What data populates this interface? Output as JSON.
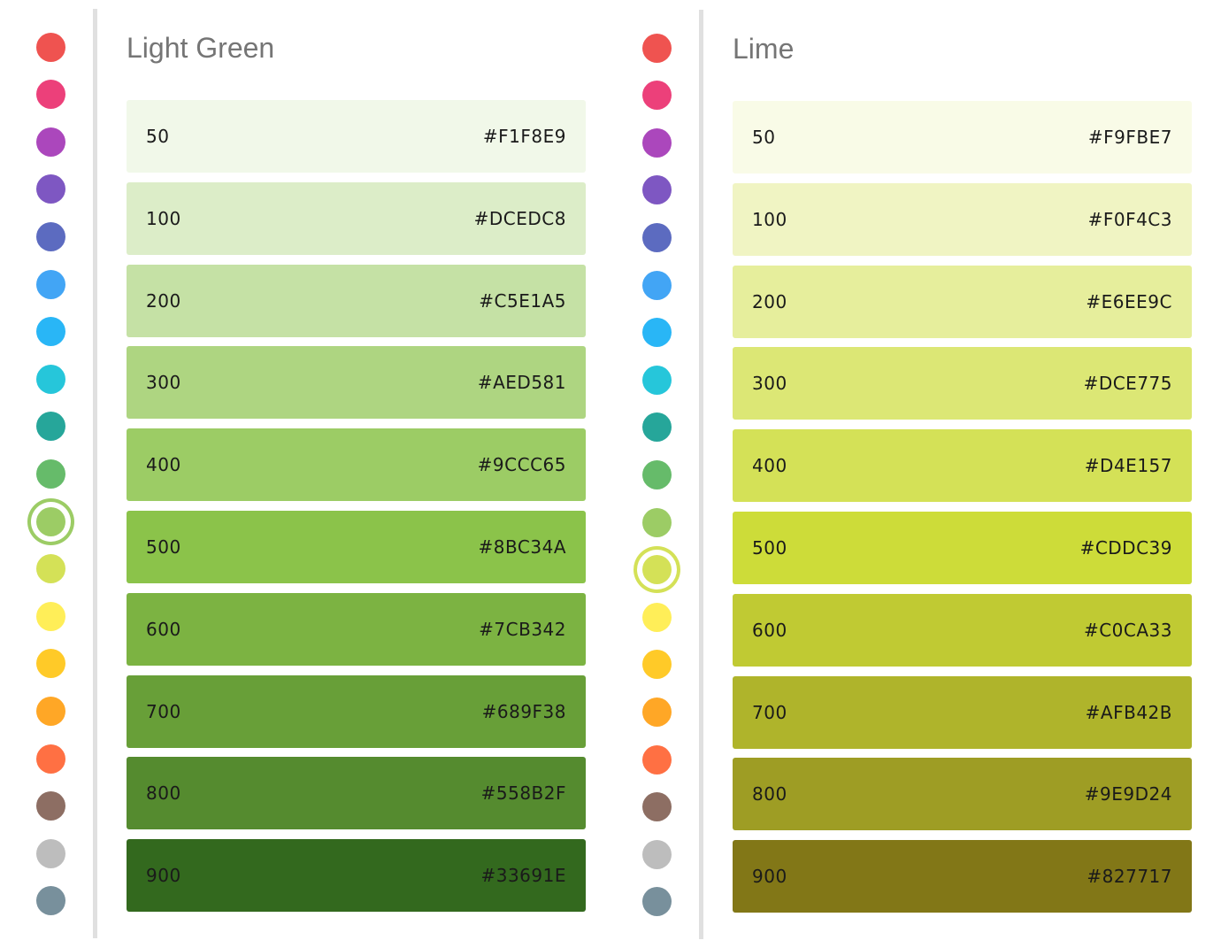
{
  "palette_dots": [
    "#EF5350",
    "#EC407A",
    "#AB47BC",
    "#7E57C2",
    "#5C6BC0",
    "#42A5F5",
    "#29B6F6",
    "#26C6DA",
    "#26A69A",
    "#66BB6A",
    "#9CCC65",
    "#D4E157",
    "#FFEE58",
    "#FFCA28",
    "#FFA726",
    "#FF7043",
    "#8D6E63",
    "#BDBDBD",
    "#78909C"
  ],
  "panels": [
    {
      "title": "Light Green",
      "selected_dot_index": 10,
      "swatches": [
        {
          "shade": "50",
          "hex": "#F1F8E9"
        },
        {
          "shade": "100",
          "hex": "#DCEDC8"
        },
        {
          "shade": "200",
          "hex": "#C5E1A5"
        },
        {
          "shade": "300",
          "hex": "#AED581"
        },
        {
          "shade": "400",
          "hex": "#9CCC65"
        },
        {
          "shade": "500",
          "hex": "#8BC34A"
        },
        {
          "shade": "600",
          "hex": "#7CB342"
        },
        {
          "shade": "700",
          "hex": "#689F38"
        },
        {
          "shade": "800",
          "hex": "#558B2F"
        },
        {
          "shade": "900",
          "hex": "#33691E"
        }
      ]
    },
    {
      "title": "Lime",
      "selected_dot_index": 11,
      "swatches": [
        {
          "shade": "50",
          "hex": "#F9FBE7"
        },
        {
          "shade": "100",
          "hex": "#F0F4C3"
        },
        {
          "shade": "200",
          "hex": "#E6EE9C"
        },
        {
          "shade": "300",
          "hex": "#DCE775"
        },
        {
          "shade": "400",
          "hex": "#D4E157"
        },
        {
          "shade": "500",
          "hex": "#CDDC39"
        },
        {
          "shade": "600",
          "hex": "#C0CA33"
        },
        {
          "shade": "700",
          "hex": "#AFB42B"
        },
        {
          "shade": "800",
          "hex": "#9E9D24"
        },
        {
          "shade": "900",
          "hex": "#827717"
        }
      ]
    }
  ]
}
